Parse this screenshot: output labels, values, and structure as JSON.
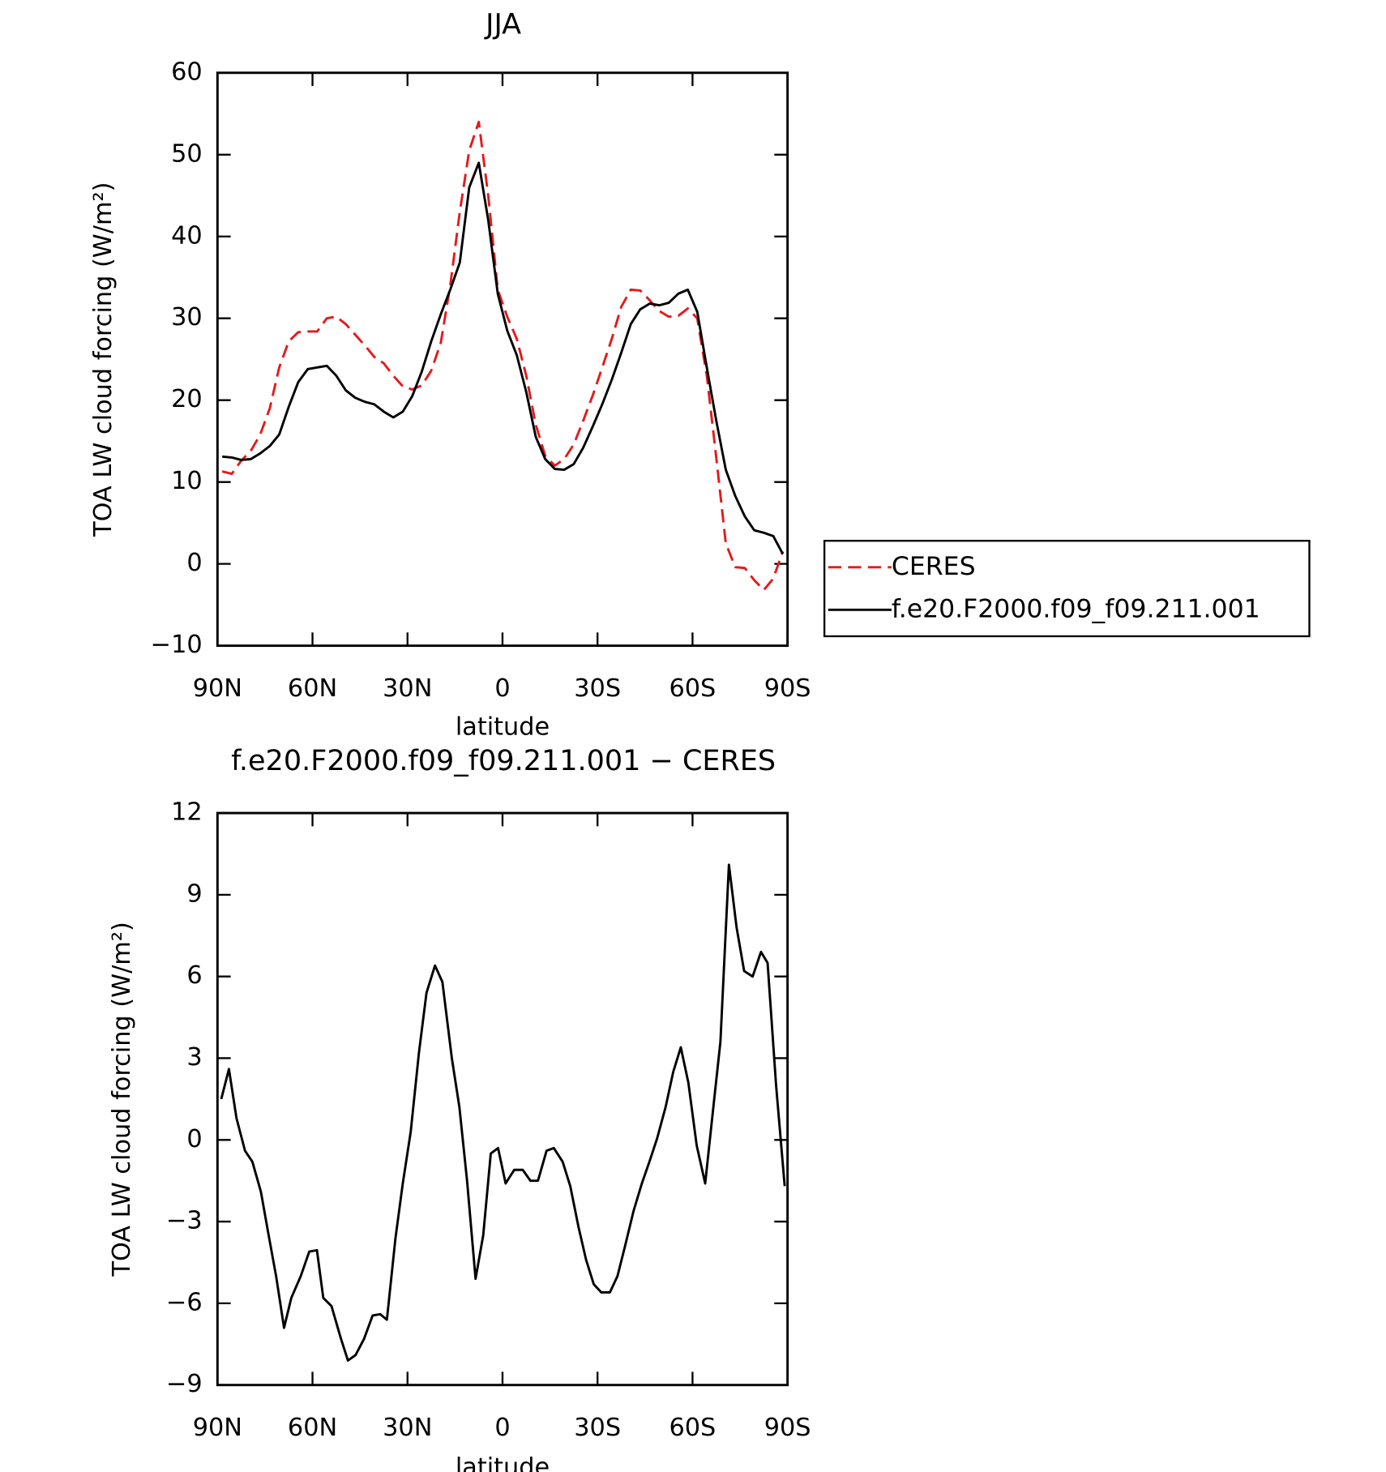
{
  "chart_data": [
    {
      "type": "line",
      "title": "JJA",
      "xlabel": "latitude",
      "ylabel": "TOA LW cloud forcing (W/m²)",
      "x": [
        88.5,
        85.5,
        82.5,
        79.5,
        76.5,
        73.5,
        70.5,
        67.5,
        64.5,
        61.5,
        58.5,
        55.5,
        52.5,
        49.5,
        46.5,
        43.5,
        40.5,
        37.5,
        34.5,
        31.5,
        28.5,
        25.5,
        22.5,
        19.5,
        16.5,
        13.5,
        10.5,
        7.5,
        4.5,
        1.5,
        -1.5,
        -4.5,
        -7.5,
        -10.5,
        -13.5,
        -16.5,
        -19.5,
        -22.5,
        -25.5,
        -28.5,
        -31.5,
        -34.5,
        -37.5,
        -40.5,
        -43.5,
        -46.5,
        -49.5,
        -52.5,
        -55.5,
        -58.5,
        -61.5,
        -64.5,
        -67.5,
        -70.5,
        -73.5,
        -76.5,
        -79.5,
        -82.5,
        -85.5,
        -88.5
      ],
      "series": [
        {
          "name": "CERES",
          "color": "#e41a1c",
          "dashed": true,
          "values": [
            11.3,
            11.0,
            12.6,
            13.8,
            15.8,
            19,
            24,
            27.2,
            28.3,
            28.4,
            28.4,
            30,
            30.2,
            29.3,
            28,
            26.7,
            25.3,
            24.5,
            23,
            21.7,
            21.3,
            21.8,
            23.6,
            27,
            34,
            43,
            50.5,
            54,
            45,
            33.5,
            30.2,
            27.5,
            23,
            17,
            13.2,
            12,
            12.8,
            14.6,
            17.5,
            20.6,
            24,
            27.5,
            31.4,
            33.5,
            33.4,
            32.2,
            30.9,
            30.2,
            30.3,
            31.2,
            30,
            23,
            13,
            2.5,
            -0.4,
            -0.5,
            -2,
            -3.2,
            -1.8,
            1.5
          ]
        },
        {
          "name": "f.e20.F2000.f09_f09.211.001",
          "color": "#000000",
          "dashed": false,
          "values": [
            13.1,
            13.0,
            12.7,
            12.8,
            13.5,
            14.4,
            15.8,
            19.2,
            22.2,
            23.8,
            24.0,
            24.2,
            23.0,
            21.2,
            20.3,
            19.8,
            19.5,
            18.6,
            17.9,
            18.6,
            20.5,
            23.5,
            27.2,
            30.5,
            33.5,
            36.8,
            46,
            49,
            42,
            33,
            28.5,
            25.5,
            21,
            15.5,
            12.8,
            11.6,
            11.5,
            12.2,
            14.2,
            16.8,
            19.5,
            22.5,
            25.8,
            29.3,
            31.1,
            31.8,
            31.6,
            31.9,
            33,
            33.5,
            30.8,
            24,
            17.5,
            11.5,
            8.3,
            5.8,
            4.1,
            3.8,
            3.4,
            1.2
          ]
        }
      ],
      "xlim": [
        90,
        -90
      ],
      "xticks": [
        {
          "value": 90,
          "label": "90N"
        },
        {
          "value": 60,
          "label": "60N"
        },
        {
          "value": 30,
          "label": "30N"
        },
        0,
        {
          "value": -30,
          "label": "30S"
        },
        {
          "value": -60,
          "label": "60S"
        },
        {
          "value": -90,
          "label": "90S"
        }
      ],
      "ylim": [
        -10,
        60
      ],
      "yticks": [
        {
          "value": -10,
          "label": "−10"
        },
        0,
        10,
        20,
        30,
        40,
        50,
        60
      ],
      "legend": "right"
    },
    {
      "type": "line",
      "title": "f.e20.F2000.f09_f09.211.001 − CERES",
      "xlabel": "latitude",
      "ylabel": "TOA LW cloud forcing (W/m²)",
      "x": [
        88.8,
        86.4,
        84,
        81.3,
        79,
        76.3,
        74,
        71.5,
        69,
        66.7,
        63.7,
        61,
        58.6,
        56.6,
        54,
        51,
        48.8,
        46.4,
        43.7,
        41,
        38.6,
        36.5,
        33.8,
        31.5,
        29,
        26.4,
        24,
        21.3,
        19,
        16,
        13.6,
        11.2,
        8.5,
        6.1,
        3.7,
        1.4,
        -1,
        -3.7,
        -6.4,
        -8.8,
        -11.2,
        -13.9,
        -16.2,
        -19,
        -21.4,
        -24,
        -26.4,
        -28.8,
        -31.2,
        -33.9,
        -36.3,
        -38.7,
        -41.4,
        -44,
        -46.4,
        -48.8,
        -51.5,
        -53.9,
        -56.3,
        -58.7,
        -61.3,
        -64,
        -66.4,
        -68.8,
        -71.5,
        -73.9,
        -76.3,
        -79,
        -81.6,
        -83.7,
        -86.4,
        -89.1
      ],
      "series": [
        {
          "color": "#000000",
          "dashed": false,
          "values": [
            1.5,
            2.6,
            0.8,
            -0.4,
            -0.8,
            -1.9,
            -3.4,
            -5,
            -6.9,
            -5.8,
            -5,
            -4.1,
            -4.05,
            -5.8,
            -6.1,
            -7.3,
            -8.1,
            -7.9,
            -7.3,
            -6.45,
            -6.4,
            -6.6,
            -3.6,
            -1.6,
            0.3,
            3.2,
            5.4,
            6.4,
            5.8,
            3,
            1.2,
            -1.5,
            -5.1,
            -3.5,
            -0.5,
            -0.3,
            -1.6,
            -1.1,
            -1.1,
            -1.5,
            -1.5,
            -0.4,
            -0.3,
            -0.8,
            -1.7,
            -3.2,
            -4.4,
            -5.3,
            -5.6,
            -5.6,
            -5.0,
            -3.9,
            -2.6,
            -1.6,
            -0.8,
            0.05,
            1.2,
            2.5,
            3.4,
            2.1,
            -0.2,
            -1.6,
            1,
            3.6,
            10.1,
            7.8,
            6.2,
            6,
            6.9,
            6.5,
            2,
            -1.7
          ]
        }
      ],
      "xlim": [
        90,
        -90
      ],
      "xticks": [
        {
          "value": 90,
          "label": "90N"
        },
        {
          "value": 60,
          "label": "60N"
        },
        {
          "value": 30,
          "label": "30N"
        },
        0,
        {
          "value": -30,
          "label": "30S"
        },
        {
          "value": -60,
          "label": "60S"
        },
        {
          "value": -90,
          "label": "90S"
        }
      ],
      "ylim": [
        -9,
        12
      ],
      "yticks": [
        {
          "value": -9,
          "label": "−9"
        },
        {
          "value": -6,
          "label": "−6"
        },
        {
          "value": -3,
          "label": "−3"
        },
        0,
        3,
        6,
        9,
        12
      ]
    }
  ]
}
